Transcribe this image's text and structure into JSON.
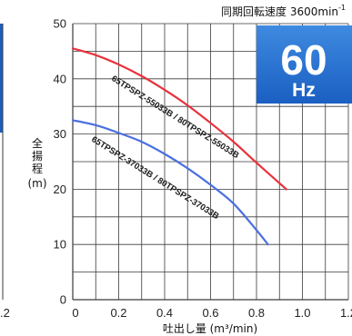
{
  "header": {
    "speed_label": "同期回転速度 3600min",
    "speed_exp": "-1"
  },
  "badge": {
    "big": "60",
    "small": "Hz"
  },
  "colors": {
    "red": "#e8323c",
    "blue": "#4a6fe0",
    "grid": "#3a3a3a",
    "badge_top": "#3f8ae0",
    "badge_bottom": "#1a5fc2"
  },
  "left_edge_tick": ".2",
  "chart_data": {
    "type": "line",
    "title": "同期回転速度 3600min-1",
    "xlabel": "吐出し量 (m³/min)",
    "ylabel": "全揚程 (m)",
    "xlim": [
      0,
      1.2
    ],
    "ylim": [
      0,
      50
    ],
    "xticks": [
      "0",
      "0.2",
      "0.4",
      "0.6",
      "0.8",
      "1.0",
      "1.2"
    ],
    "yticks": [
      "0",
      "10",
      "20",
      "30",
      "40",
      "50"
    ],
    "grid": true,
    "series": [
      {
        "name": "65TPSPZ-55033B / 80TPSPZ-55033B",
        "color": "red",
        "points": [
          [
            0,
            45.5
          ],
          [
            0.1,
            44.3
          ],
          [
            0.2,
            42.6
          ],
          [
            0.3,
            40.5
          ],
          [
            0.4,
            38.0
          ],
          [
            0.5,
            35.2
          ],
          [
            0.6,
            32.0
          ],
          [
            0.7,
            28.6
          ],
          [
            0.8,
            24.8
          ],
          [
            0.9,
            21.1
          ],
          [
            0.93,
            20.0
          ]
        ]
      },
      {
        "name": "65TPSPZ-37033B / 80TPSPZ-37033B",
        "color": "blue",
        "points": [
          [
            0,
            32.5
          ],
          [
            0.1,
            31.6
          ],
          [
            0.2,
            30.2
          ],
          [
            0.3,
            28.6
          ],
          [
            0.4,
            26.4
          ],
          [
            0.5,
            23.8
          ],
          [
            0.6,
            20.8
          ],
          [
            0.7,
            17.4
          ],
          [
            0.8,
            12.6
          ],
          [
            0.85,
            10.0
          ]
        ]
      }
    ]
  }
}
